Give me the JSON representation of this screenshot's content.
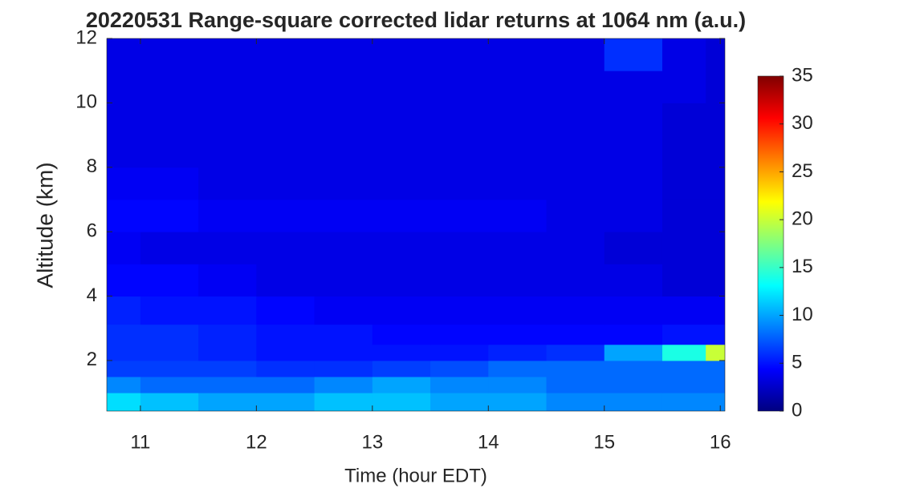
{
  "chart_data": {
    "type": "heatmap",
    "title": "20220531  Range-square corrected lidar returns at 1064 nm (a.u.)",
    "x_label": "Time (hour EDT)",
    "y_label": "Altitude (km)",
    "x": [
      10.75,
      11.25,
      11.75,
      12.25,
      12.75,
      13.25,
      13.75,
      14.25,
      14.75,
      15.25,
      15.75,
      16.0
    ],
    "y": [
      0.75,
      1.25,
      1.75,
      2.25,
      2.75,
      3.5,
      4.5,
      5.5,
      6.5,
      7.5,
      8.5,
      9.5,
      10.5,
      11.5
    ],
    "z": [
      [
        12,
        11,
        10,
        10,
        11,
        11,
        10,
        10,
        9,
        9,
        9,
        9
      ],
      [
        9,
        8,
        8,
        8,
        9,
        10,
        9,
        9,
        8,
        8,
        8,
        8
      ],
      [
        6.5,
        6.5,
        6.5,
        6,
        6,
        6.5,
        7,
        8,
        8,
        8,
        8,
        8
      ],
      [
        6,
        6,
        5.5,
        5,
        5,
        5,
        5,
        5.5,
        6,
        10,
        14,
        20
      ],
      [
        6,
        6,
        5.5,
        5,
        5,
        4.5,
        4.5,
        4.5,
        4.5,
        4.5,
        5,
        5
      ],
      [
        5.5,
        5,
        5,
        4.5,
        4,
        4,
        4,
        4,
        4,
        4,
        4,
        4
      ],
      [
        4.5,
        4.5,
        4,
        3.5,
        3.5,
        3.5,
        3.5,
        3.5,
        3.5,
        3.5,
        3,
        3
      ],
      [
        4,
        3.5,
        3.5,
        3.5,
        3.5,
        3.5,
        3.5,
        3.5,
        3.5,
        3,
        3,
        3
      ],
      [
        4.5,
        4.5,
        4,
        4,
        4,
        4,
        4,
        4,
        3.5,
        3.5,
        3,
        3
      ],
      [
        4,
        4,
        3.5,
        3.5,
        3.5,
        3.5,
        3.5,
        3.5,
        3.5,
        3.5,
        3,
        3
      ],
      [
        3.5,
        3.5,
        3.5,
        3.5,
        3.5,
        3.5,
        3.5,
        3.5,
        3.5,
        3.5,
        3,
        3
      ],
      [
        3.5,
        3.5,
        3.5,
        3.5,
        3.5,
        3.5,
        3.5,
        3.5,
        3.5,
        3.5,
        3,
        3
      ],
      [
        3.5,
        3.5,
        3.5,
        3.5,
        3.5,
        3.5,
        3.5,
        3.5,
        3.5,
        3.5,
        3.5,
        3
      ],
      [
        3.5,
        3.5,
        3.5,
        3.5,
        3.5,
        3.5,
        3.5,
        3.5,
        3.5,
        6,
        3.5,
        3
      ]
    ],
    "xlim": [
      10.71,
      16.04
    ],
    "ylim": [
      0.43,
      12
    ],
    "xticks": [
      11,
      12,
      13,
      14,
      15,
      16
    ],
    "yticks": [
      2,
      4,
      6,
      8,
      10,
      12
    ],
    "colormap": "jet",
    "clim": [
      0,
      35
    ],
    "cticks": [
      0,
      5,
      10,
      15,
      20,
      25,
      30,
      35
    ]
  }
}
